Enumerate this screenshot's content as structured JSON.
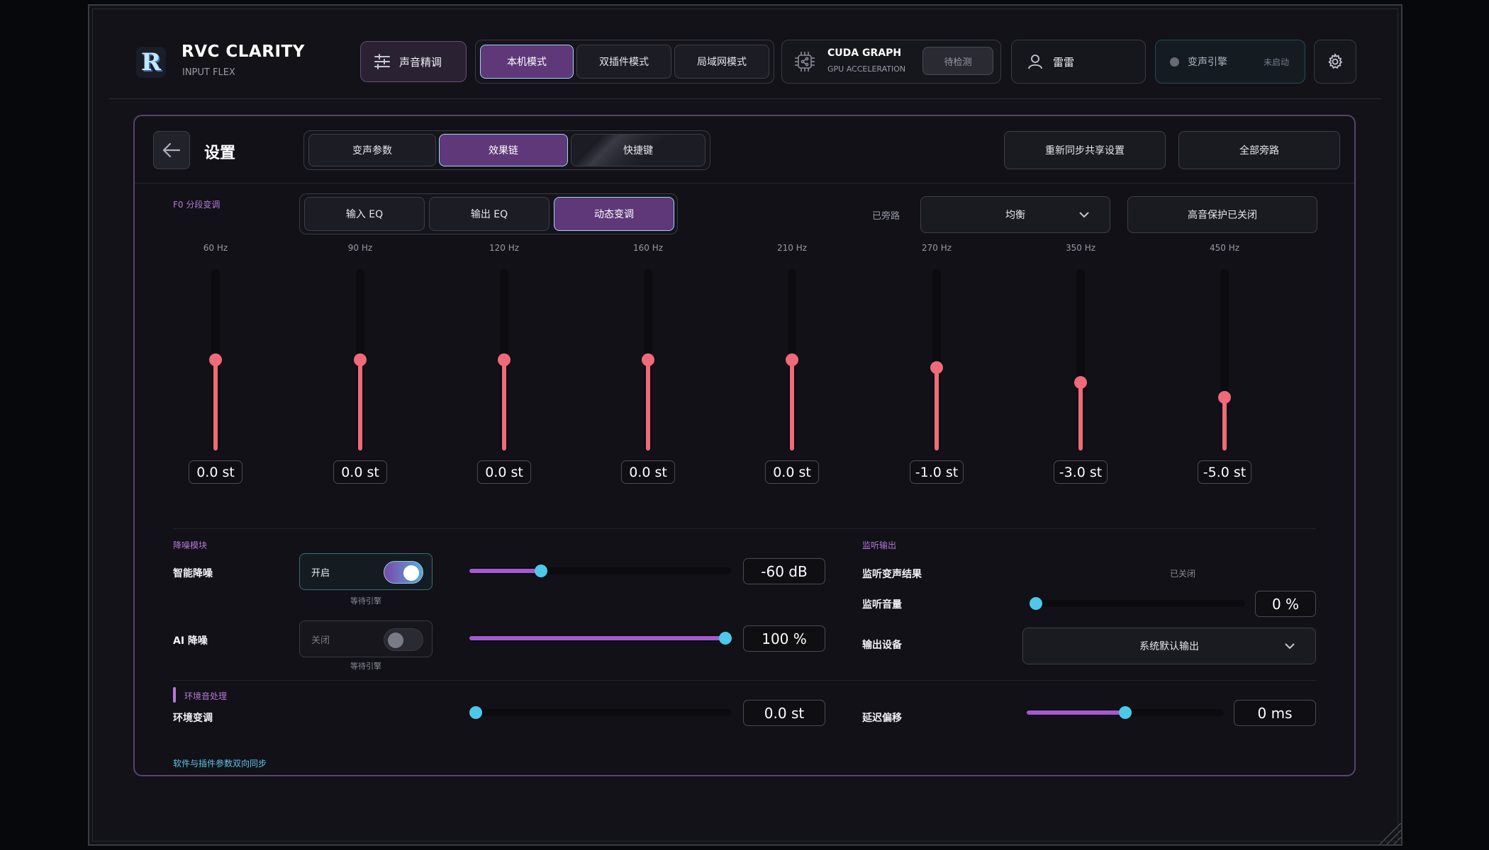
{
  "brand": {
    "title": "RVC CLARITY",
    "subtitle": "INPUT FLEX",
    "logo_letter": "R"
  },
  "header": {
    "tune_label": "声音精调",
    "modes": [
      "本机模式",
      "双插件模式",
      "局域网模式"
    ],
    "active_mode": 0,
    "cuda": {
      "title": "CUDA GRAPH",
      "subtitle": "GPU ACCELERATION",
      "button": "待检测"
    },
    "user_name": "雷雷",
    "engine": {
      "label": "变声引擎",
      "status": "未启动"
    }
  },
  "panel": {
    "title": "设置",
    "tabs": [
      "变声参数",
      "效果链",
      "快捷键"
    ],
    "active_tab": 1,
    "actions": [
      "重新同步共享设置",
      "全部旁路"
    ]
  },
  "eq": {
    "section_label": "F0 分段变调",
    "subtabs": [
      "输入 EQ",
      "输出 EQ",
      "动态变调"
    ],
    "active_subtab": 2,
    "bypass_label": "已旁路",
    "preset": "均衡",
    "high_protect": "高音保护已关闭",
    "range_st": [
      -12,
      12
    ],
    "bands": [
      {
        "hz": "60 Hz",
        "value": 0.0,
        "display": "0.0 st"
      },
      {
        "hz": "90 Hz",
        "value": 0.0,
        "display": "0.0 st"
      },
      {
        "hz": "120 Hz",
        "value": 0.0,
        "display": "0.0 st"
      },
      {
        "hz": "160 Hz",
        "value": 0.0,
        "display": "0.0 st"
      },
      {
        "hz": "210 Hz",
        "value": 0.0,
        "display": "0.0 st"
      },
      {
        "hz": "270 Hz",
        "value": -1.0,
        "display": "-1.0 st"
      },
      {
        "hz": "350 Hz",
        "value": -3.0,
        "display": "-3.0 st"
      },
      {
        "hz": "450 Hz",
        "value": -5.0,
        "display": "-5.0 st"
      }
    ]
  },
  "noise": {
    "section_label": "降噪模块",
    "smart": {
      "label": "智能降噪",
      "toggle": "开启",
      "on": true,
      "note": "等待引擎",
      "slider_fraction": 0.26,
      "value": "-60 dB"
    },
    "ai": {
      "label": "AI 降噪",
      "toggle": "关闭",
      "on": false,
      "note": "等待引擎",
      "slider_fraction": 1.0,
      "value": "100 %"
    }
  },
  "monitor": {
    "section_label": "监听输出",
    "result_label": "监听变声结果",
    "result_value": "已关闭",
    "volume_label": "监听音量",
    "volume_fraction": 0.0,
    "volume_value": "0 %",
    "device_label": "输出设备",
    "device_value": "系统默认输出"
  },
  "ambient": {
    "section_label": "环境音处理",
    "pitch_label": "环境变调",
    "pitch_fraction": 0.0,
    "pitch_value": "0.0 st",
    "delay_label": "延迟偏移",
    "delay_fraction": 0.5,
    "delay_value": "0 ms"
  },
  "footer_note": "软件与插件参数双向同步",
  "colors": {
    "accent": "#5e3878",
    "eq": "#f06a7a",
    "slider": "#a45ad2",
    "thumb": "#4ec8e8"
  }
}
